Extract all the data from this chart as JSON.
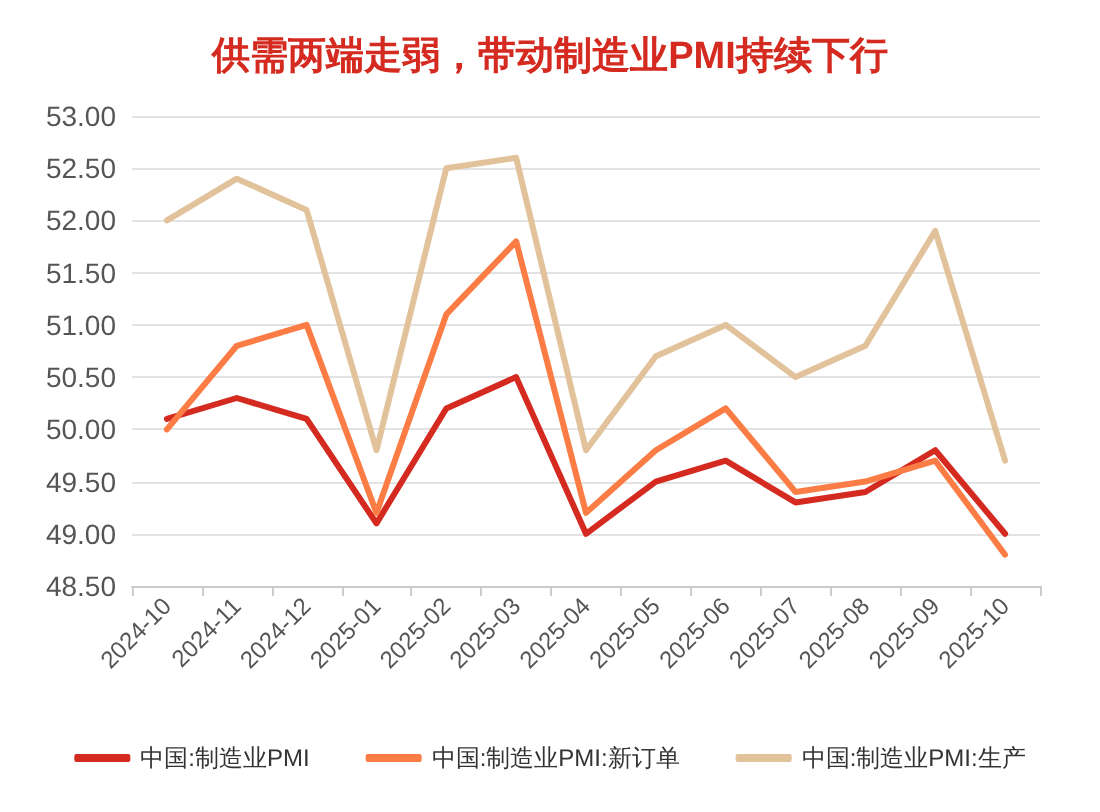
{
  "chart_data": {
    "type": "line",
    "title": "供需两端走弱，带动制造业PMI持续下行",
    "categories": [
      "2024-10",
      "2024-11",
      "2024-12",
      "2025-01",
      "2025-02",
      "2025-03",
      "2025-04",
      "2025-05",
      "2025-06",
      "2025-07",
      "2025-08",
      "2025-09",
      "2025-10"
    ],
    "series": [
      {
        "name": "中国:制造业PMI",
        "color": "#d42a20",
        "values": [
          50.1,
          50.3,
          50.1,
          49.1,
          50.2,
          50.5,
          49.0,
          49.5,
          49.7,
          49.3,
          49.4,
          49.8,
          49.0
        ]
      },
      {
        "name": "中国:制造业PMI:新订单",
        "color": "#fb7d45",
        "values": [
          50.0,
          50.8,
          51.0,
          49.2,
          51.1,
          51.8,
          49.2,
          49.8,
          50.2,
          49.4,
          49.5,
          49.7,
          48.8
        ]
      },
      {
        "name": "中国:制造业PMI:生产",
        "color": "#e2c29b",
        "values": [
          52.0,
          52.4,
          52.1,
          49.8,
          52.5,
          52.6,
          49.8,
          50.7,
          51.0,
          50.5,
          50.8,
          51.9,
          49.7
        ]
      }
    ],
    "ylim": [
      48.5,
      53
    ],
    "yticks": [
      {
        "value": 48.5,
        "label": "48.50"
      },
      {
        "value": 49,
        "label": "49.00"
      },
      {
        "value": 49.5,
        "label": "49.50"
      },
      {
        "value": 50,
        "label": "50.00"
      },
      {
        "value": 50.5,
        "label": "50.50"
      },
      {
        "value": 51,
        "label": "51.00"
      },
      {
        "value": 51.5,
        "label": "51.50"
      },
      {
        "value": 52,
        "label": "52.00"
      },
      {
        "value": 52.5,
        "label": "52.50"
      },
      {
        "value": 53,
        "label": "53.00"
      }
    ],
    "grid": "y",
    "legend": "bottom",
    "marker": "none",
    "line_style": "solid"
  }
}
